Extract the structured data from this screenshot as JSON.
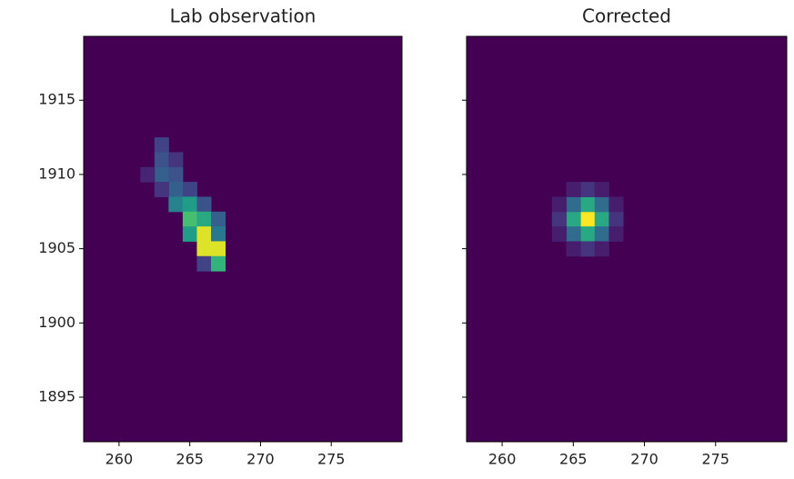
{
  "chart_data": [
    {
      "type": "heatmap",
      "title": "Lab observation",
      "xlim": [
        257.5,
        280
      ],
      "ylim": [
        1892,
        1919.3
      ],
      "xticks": [
        260,
        265,
        270,
        275
      ],
      "yticks": [
        1895,
        1900,
        1905,
        1910,
        1915
      ],
      "show_ytick_labels": true,
      "colormap": "viridis",
      "zlim": [
        0,
        1
      ],
      "cells": {
        "x": [
          263,
          263,
          264,
          263,
          264,
          264,
          265,
          264,
          265,
          266,
          265,
          266,
          267,
          265,
          266,
          267,
          266,
          267,
          266,
          267,
          262,
          263
        ],
        "y": [
          1912,
          1911,
          1911,
          1910,
          1910,
          1909,
          1909,
          1908,
          1908,
          1908,
          1907,
          1907,
          1907,
          1906,
          1906,
          1906,
          1905,
          1905,
          1904,
          1904,
          1910,
          1909
        ],
        "values": [
          0.2,
          0.25,
          0.15,
          0.3,
          0.25,
          0.3,
          0.2,
          0.45,
          0.55,
          0.25,
          0.7,
          0.6,
          0.3,
          0.55,
          0.95,
          0.4,
          0.95,
          0.95,
          0.2,
          0.65,
          0.1,
          0.15
        ]
      }
    },
    {
      "type": "heatmap",
      "title": "Corrected",
      "xlim": [
        257.5,
        280
      ],
      "ylim": [
        1892,
        1919.3
      ],
      "xticks": [
        260,
        265,
        270,
        275
      ],
      "yticks": [
        1895,
        1900,
        1905,
        1910,
        1915
      ],
      "show_ytick_labels": false,
      "colormap": "viridis",
      "zlim": [
        0,
        1
      ],
      "cells": {
        "x": [
          266,
          265,
          267,
          266,
          266,
          265,
          267,
          265,
          267,
          264,
          268,
          266,
          266,
          264,
          268,
          264,
          268,
          265,
          267,
          265,
          267
        ],
        "y": [
          1907,
          1907,
          1907,
          1906,
          1908,
          1906,
          1906,
          1908,
          1908,
          1907,
          1907,
          1905,
          1909,
          1906,
          1906,
          1908,
          1908,
          1905,
          1905,
          1909,
          1909
        ],
        "values": [
          1.0,
          0.6,
          0.6,
          0.6,
          0.6,
          0.35,
          0.35,
          0.35,
          0.35,
          0.15,
          0.15,
          0.15,
          0.15,
          0.08,
          0.08,
          0.08,
          0.08,
          0.08,
          0.08,
          0.08,
          0.08
        ]
      }
    }
  ]
}
